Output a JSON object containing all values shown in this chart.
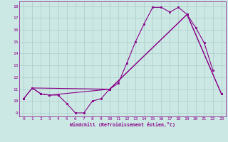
{
  "xlabel": "Windchill (Refroidissement éolien,°C)",
  "background_color": "#cce8e4",
  "grid_color": "#aaccc8",
  "line_color": "#880088",
  "xlim": [
    -0.5,
    23.5
  ],
  "ylim": [
    8.7,
    18.4
  ],
  "yticks": [
    9,
    10,
    11,
    12,
    13,
    14,
    15,
    16,
    17,
    18
  ],
  "xticks": [
    0,
    1,
    2,
    3,
    4,
    5,
    6,
    7,
    8,
    9,
    10,
    11,
    12,
    13,
    14,
    15,
    16,
    17,
    18,
    19,
    20,
    21,
    22,
    23
  ],
  "series1_x": [
    0,
    1,
    2,
    3,
    4,
    5,
    6,
    7,
    8,
    9,
    10,
    11,
    12,
    13,
    14,
    15,
    16,
    17,
    18,
    19,
    20,
    21,
    22
  ],
  "series1_y": [
    10.2,
    11.1,
    10.6,
    10.5,
    10.5,
    9.8,
    9.0,
    9.0,
    10.0,
    10.2,
    11.0,
    11.5,
    13.2,
    15.0,
    16.5,
    17.9,
    17.9,
    17.5,
    17.9,
    17.3,
    16.2,
    14.9,
    12.6
  ],
  "series2_x": [
    1,
    2,
    3,
    10,
    19,
    23
  ],
  "series2_y": [
    11.1,
    10.6,
    10.5,
    11.0,
    17.3,
    10.6
  ],
  "series3_x": [
    0,
    1,
    10,
    19,
    23
  ],
  "series3_y": [
    10.2,
    11.1,
    11.0,
    17.3,
    10.6
  ]
}
